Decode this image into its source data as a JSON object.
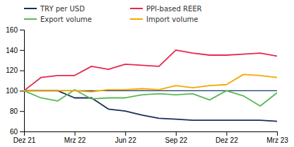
{
  "chart_data": {
    "type": "line",
    "title": "",
    "x": [
      0,
      1,
      2,
      3,
      4,
      5,
      6,
      7,
      8,
      9,
      10,
      11,
      12,
      13,
      14,
      15
    ],
    "xlim": [
      0,
      15
    ],
    "xticks": [
      {
        "value": 0,
        "label": "Dez 21"
      },
      {
        "value": 3,
        "label": "Mrz 22"
      },
      {
        "value": 6,
        "label": "Jun 22"
      },
      {
        "value": 9,
        "label": "Sep 22"
      },
      {
        "value": 12,
        "label": "Dez 22"
      },
      {
        "value": 15,
        "label": "Mrz 23"
      }
    ],
    "ylim": [
      60,
      160
    ],
    "yticks": [
      60,
      80,
      100,
      120,
      140,
      160
    ],
    "series": [
      {
        "name": "TRY per USD",
        "color": "#1a2e5a",
        "values": [
          100,
          100,
          100,
          93,
          93,
          82,
          80,
          76,
          73,
          72,
          71,
          71,
          71,
          71,
          71,
          70
        ]
      },
      {
        "name": "PPI-based REER",
        "color": "#e8294c",
        "values": [
          100,
          113,
          115,
          115,
          124,
          121,
          126,
          125,
          124,
          140,
          137,
          135,
          135,
          136,
          137,
          134
        ]
      },
      {
        "name": "Export volume",
        "color": "#5ab955",
        "values": [
          100,
          93,
          90,
          101,
          92,
          93,
          93,
          96,
          97,
          96,
          97,
          91,
          100,
          95,
          85,
          98
        ]
      },
      {
        "name": "Import volume",
        "color": "#f5a800",
        "values": [
          100,
          100,
          100,
          100,
          99,
          101,
          101,
          102,
          101,
          105,
          103,
          105,
          106,
          116,
          115,
          113
        ]
      }
    ],
    "reference_line": {
      "value": 100,
      "color": "#1a3a6b"
    },
    "grid": false,
    "legend": "top-left"
  }
}
